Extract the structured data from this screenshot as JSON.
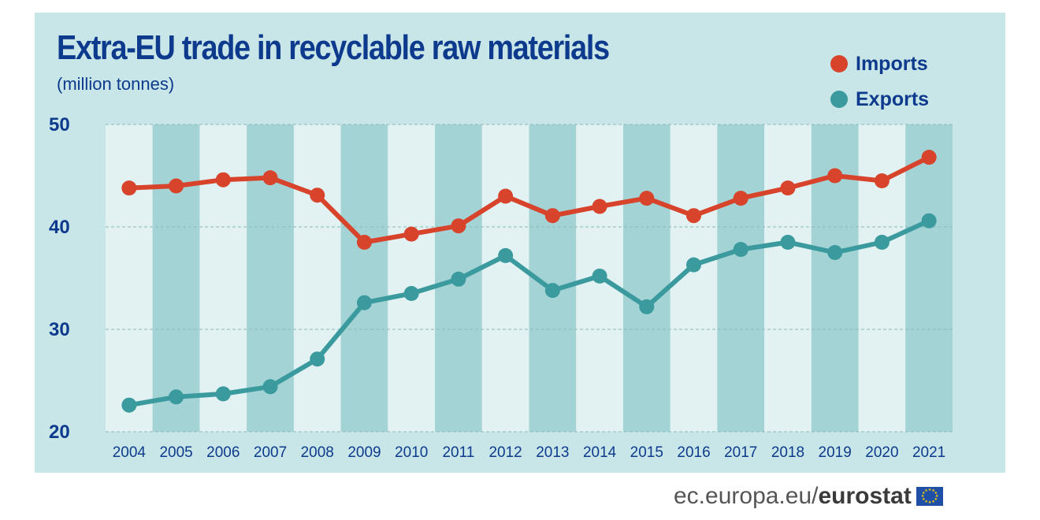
{
  "chart_data": {
    "type": "line",
    "title": "Extra-EU trade in recyclable raw materials",
    "subtitle": "(million tonnes)",
    "categories": [
      "2004",
      "2005",
      "2006",
      "2007",
      "2008",
      "2009",
      "2010",
      "2011",
      "2012",
      "2013",
      "2014",
      "2015",
      "2016",
      "2017",
      "2018",
      "2019",
      "2020",
      "2021"
    ],
    "series": [
      {
        "name": "Imports",
        "color": "#d7432b",
        "values": [
          43.8,
          44.0,
          44.6,
          44.8,
          43.1,
          38.5,
          39.3,
          40.1,
          43.0,
          41.1,
          42.0,
          42.8,
          41.1,
          42.8,
          43.8,
          45.0,
          44.5,
          46.8
        ]
      },
      {
        "name": "Exports",
        "color": "#3a9a9e",
        "values": [
          22.6,
          23.4,
          23.7,
          24.4,
          27.1,
          32.6,
          33.5,
          34.9,
          37.2,
          33.8,
          35.2,
          32.2,
          36.3,
          37.8,
          38.5,
          37.5,
          38.5,
          40.6
        ]
      }
    ],
    "y_ticks": [
      "50",
      "40",
      "30",
      "20"
    ],
    "ylim": [
      20,
      50
    ],
    "grid": "dashed-horizontal",
    "legend": "top-right",
    "background": "#c8e6e7",
    "band_light": "#e2f1f1",
    "band_dark": "#a3d3d4",
    "axis_text_color": "#0d3a8c"
  },
  "footer": {
    "site": "ec.europa.eu/",
    "brand": "eurostat"
  }
}
